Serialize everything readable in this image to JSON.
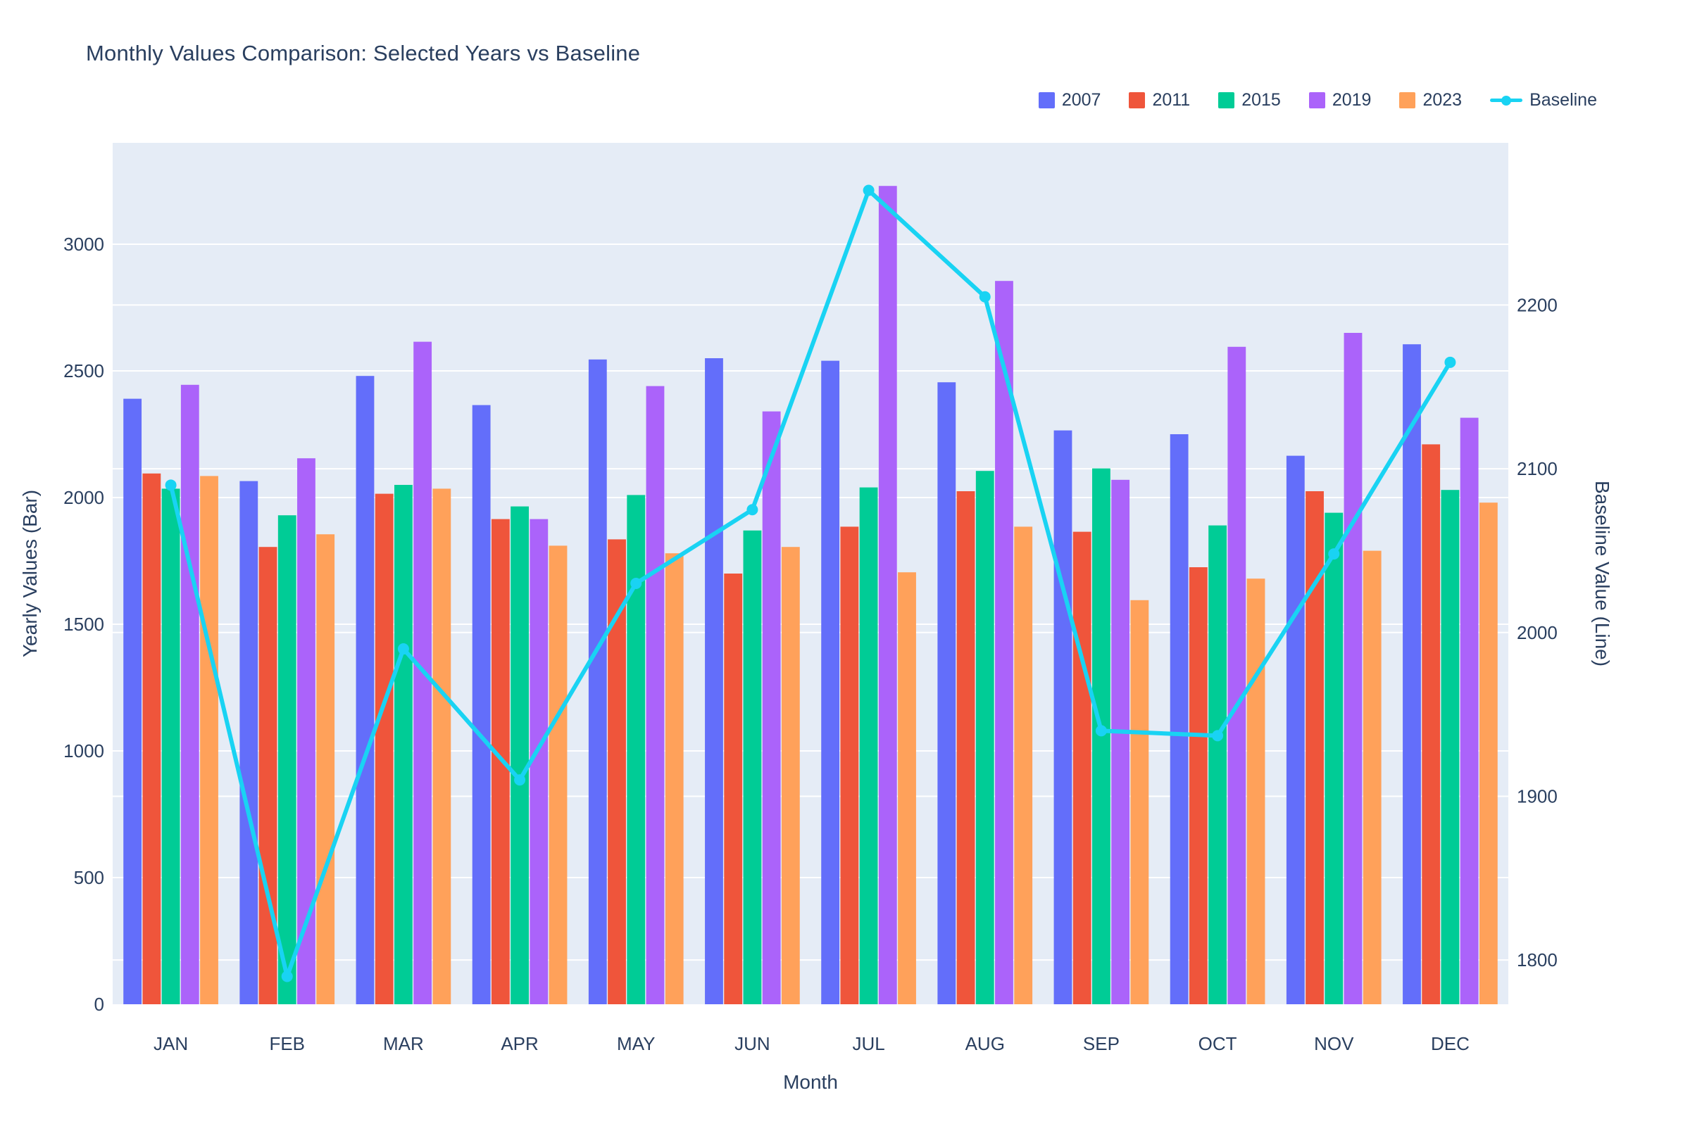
{
  "title": "Monthly Values Comparison: Selected Years vs Baseline",
  "colors": {
    "plot_background": "#E5ECF6",
    "gridline": "#ffffff",
    "text": "#2a3f5f",
    "series_2007": "#636EFA",
    "series_2011": "#EF553B",
    "series_2015": "#00CC96",
    "series_2019": "#AB63FA",
    "series_2023": "#FFA15A",
    "baseline_line": "#19D3F3"
  },
  "legend": {
    "items": [
      {
        "label": "2007",
        "color": "#636EFA",
        "type": "swatch"
      },
      {
        "label": "2011",
        "color": "#EF553B",
        "type": "swatch"
      },
      {
        "label": "2015",
        "color": "#00CC96",
        "type": "swatch"
      },
      {
        "label": "2019",
        "color": "#AB63FA",
        "type": "swatch"
      },
      {
        "label": "2023",
        "color": "#FFA15A",
        "type": "swatch"
      },
      {
        "label": "Baseline",
        "color": "#19D3F3",
        "type": "line"
      }
    ]
  },
  "chart_data": {
    "type": "bar",
    "subtype": "grouped-bars-with-secondary-axis-line",
    "title": "Monthly Values Comparison: Selected Years vs Baseline",
    "xlabel": "Month",
    "ylabel_left": "Yearly Values (Bar)",
    "ylabel_right": "Baseline Value (Line)",
    "categories": [
      "JAN",
      "FEB",
      "MAR",
      "APR",
      "MAY",
      "JUN",
      "JUL",
      "AUG",
      "SEP",
      "OCT",
      "NOV",
      "DEC"
    ],
    "series": [
      {
        "name": "2007",
        "color": "#636EFA",
        "axis": "left",
        "values": [
          2390,
          2065,
          2480,
          2365,
          2545,
          2550,
          2540,
          2455,
          2265,
          2250,
          2165,
          2605
        ]
      },
      {
        "name": "2011",
        "color": "#EF553B",
        "axis": "left",
        "values": [
          2095,
          1805,
          2015,
          1915,
          1835,
          1700,
          1885,
          2025,
          1865,
          1725,
          2025,
          2210
        ]
      },
      {
        "name": "2015",
        "color": "#00CC96",
        "axis": "left",
        "values": [
          2035,
          1930,
          2050,
          1965,
          2010,
          1870,
          2040,
          2105,
          2115,
          1890,
          1940,
          2030
        ]
      },
      {
        "name": "2019",
        "color": "#AB63FA",
        "axis": "left",
        "values": [
          2445,
          2155,
          2615,
          1915,
          2440,
          2340,
          3230,
          2855,
          2070,
          2595,
          2650,
          2315
        ]
      },
      {
        "name": "2023",
        "color": "#FFA15A",
        "axis": "left",
        "values": [
          2085,
          1855,
          2035,
          1810,
          1780,
          1805,
          1705,
          1885,
          1595,
          1680,
          1790,
          1980
        ]
      }
    ],
    "line_series": {
      "name": "Baseline",
      "color": "#19D3F3",
      "axis": "right",
      "values": [
        2090,
        1790,
        1990,
        1910,
        2030,
        2075,
        2270,
        2205,
        1940,
        1937,
        2048,
        2165
      ]
    },
    "yaxis_left": {
      "ticks": [
        0,
        500,
        1000,
        1500,
        2000,
        2500,
        3000
      ],
      "range": [
        0,
        3400
      ]
    },
    "yaxis_right": {
      "ticks": [
        1800,
        1900,
        2000,
        2100,
        2200
      ],
      "range": [
        1773,
        2299
      ]
    },
    "grid": true,
    "legend_position": "top-right",
    "bar_mode": "group"
  }
}
